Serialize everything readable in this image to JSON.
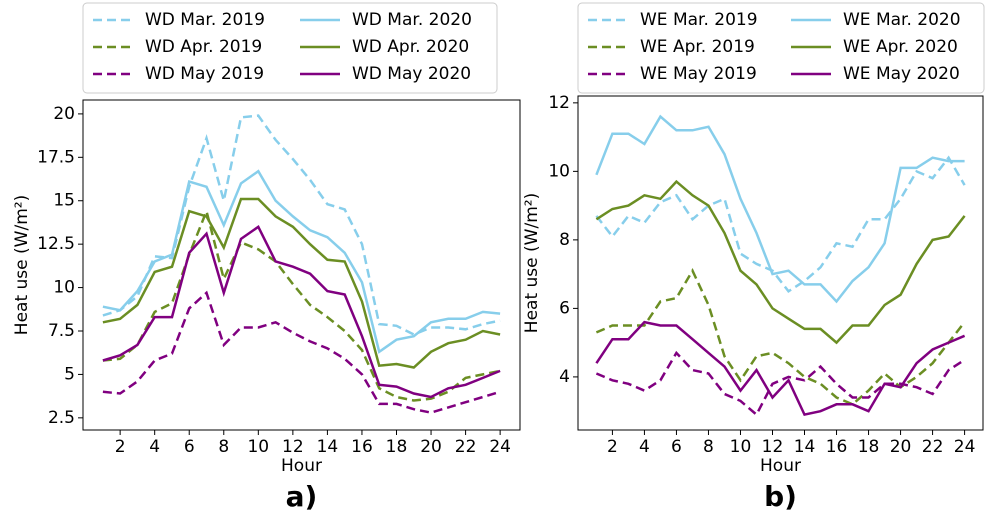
{
  "chart_data": [
    {
      "type": "line",
      "panel_label": "a)",
      "x_label": "Hour",
      "y_label": "Heat use (W/m²)",
      "x": [
        1,
        2,
        3,
        4,
        5,
        6,
        7,
        8,
        9,
        10,
        11,
        12,
        13,
        14,
        15,
        16,
        17,
        18,
        19,
        20,
        21,
        22,
        23,
        24
      ],
      "xlim": [
        -0.15,
        25.15
      ],
      "xticks": [
        2,
        4,
        6,
        8,
        10,
        12,
        14,
        16,
        18,
        20,
        22,
        24
      ],
      "ylim": [
        1.8,
        20.8
      ],
      "yticks": [
        2.5,
        5.0,
        7.5,
        10.0,
        12.5,
        15.0,
        17.5,
        20.0
      ],
      "legend": "top",
      "legend_columns": 2,
      "series": [
        {
          "name": "WD Mar. 2019",
          "color": "#87ceeb",
          "linestyle": "dashed",
          "values": [
            8.4,
            8.7,
            9.5,
            11.8,
            11.7,
            15.8,
            18.6,
            15.0,
            19.8,
            19.9,
            18.5,
            17.4,
            16.2,
            14.8,
            14.5,
            12.5,
            7.9,
            7.8,
            7.3,
            7.7,
            7.7,
            7.6,
            7.9,
            8.1
          ]
        },
        {
          "name": "WD Apr. 2019",
          "color": "#6b8e23",
          "linestyle": "dashed",
          "values": [
            5.8,
            5.9,
            6.7,
            8.6,
            9.1,
            11.9,
            14.4,
            10.5,
            12.6,
            12.2,
            11.5,
            10.2,
            9.0,
            8.3,
            7.5,
            6.4,
            4.2,
            3.7,
            3.5,
            3.6,
            4.0,
            4.8,
            5.0,
            5.2
          ]
        },
        {
          "name": "WD May 2019",
          "color": "#800080",
          "linestyle": "dashed",
          "values": [
            4.0,
            3.9,
            4.6,
            5.8,
            6.2,
            8.8,
            9.7,
            6.7,
            7.7,
            7.7,
            8.0,
            7.4,
            6.9,
            6.5,
            5.9,
            5.0,
            3.3,
            3.3,
            3.0,
            2.8,
            3.1,
            3.4,
            3.7,
            4.0
          ]
        },
        {
          "name": "WD Mar. 2020",
          "color": "#87ceeb",
          "linestyle": "solid",
          "values": [
            8.9,
            8.7,
            9.8,
            11.5,
            11.9,
            16.1,
            15.8,
            13.6,
            16.0,
            16.7,
            15.0,
            14.1,
            13.3,
            12.9,
            12.0,
            10.3,
            6.3,
            7.0,
            7.2,
            8.0,
            8.2,
            8.2,
            8.6,
            8.5
          ]
        },
        {
          "name": "WD Apr. 2020",
          "color": "#6b8e23",
          "linestyle": "solid",
          "values": [
            8.0,
            8.2,
            9.0,
            10.9,
            11.2,
            14.4,
            14.1,
            12.3,
            15.1,
            15.1,
            14.1,
            13.5,
            12.5,
            11.6,
            11.5,
            9.2,
            5.5,
            5.6,
            5.4,
            6.3,
            6.8,
            7.0,
            7.5,
            7.3
          ]
        },
        {
          "name": "WD May 2020",
          "color": "#800080",
          "linestyle": "solid",
          "values": [
            5.8,
            6.1,
            6.7,
            8.3,
            8.3,
            12.0,
            13.1,
            9.7,
            12.8,
            13.5,
            11.5,
            11.2,
            10.8,
            9.8,
            9.6,
            7.2,
            4.4,
            4.3,
            3.9,
            3.7,
            4.2,
            4.4,
            4.8,
            5.2
          ]
        }
      ]
    },
    {
      "type": "line",
      "panel_label": "b)",
      "x_label": "Hour",
      "y_label": "Heat use (W/m²)",
      "x": [
        1,
        2,
        3,
        4,
        5,
        6,
        7,
        8,
        9,
        10,
        11,
        12,
        13,
        14,
        15,
        16,
        17,
        18,
        19,
        20,
        21,
        22,
        23,
        24
      ],
      "xlim": [
        -0.15,
        25.15
      ],
      "xticks": [
        2,
        4,
        6,
        8,
        10,
        12,
        14,
        16,
        18,
        20,
        22,
        24
      ],
      "ylim": [
        2.45,
        12.2
      ],
      "yticks": [
        4,
        6,
        8,
        10,
        12
      ],
      "legend": "top",
      "legend_columns": 2,
      "series": [
        {
          "name": "WE Mar. 2019",
          "color": "#87ceeb",
          "linestyle": "dashed",
          "values": [
            8.7,
            8.1,
            8.7,
            8.5,
            9.1,
            9.3,
            8.6,
            9.0,
            9.2,
            7.6,
            7.3,
            7.1,
            6.5,
            6.8,
            7.2,
            7.9,
            7.8,
            8.6,
            8.6,
            9.2,
            10.0,
            9.8,
            10.4,
            9.6
          ]
        },
        {
          "name": "WE Apr. 2019",
          "color": "#6b8e23",
          "linestyle": "dashed",
          "values": [
            5.3,
            5.5,
            5.5,
            5.5,
            6.2,
            6.3,
            7.1,
            6.1,
            4.6,
            3.9,
            4.6,
            4.7,
            4.4,
            4.0,
            3.8,
            3.4,
            3.2,
            3.6,
            4.1,
            3.7,
            4.0,
            4.4,
            5.0,
            5.6
          ]
        },
        {
          "name": "WE May 2019",
          "color": "#800080",
          "linestyle": "dashed",
          "values": [
            4.1,
            3.9,
            3.8,
            3.6,
            3.9,
            4.7,
            4.2,
            4.1,
            3.5,
            3.3,
            2.9,
            3.8,
            4.0,
            3.9,
            4.3,
            3.8,
            3.4,
            3.4,
            3.8,
            3.8,
            3.7,
            3.5,
            4.2,
            4.5
          ]
        },
        {
          "name": "WE Mar. 2020",
          "color": "#87ceeb",
          "linestyle": "solid",
          "values": [
            9.9,
            11.1,
            11.1,
            10.8,
            11.6,
            11.2,
            11.2,
            11.3,
            10.5,
            9.2,
            8.2,
            7.0,
            7.1,
            6.7,
            6.7,
            6.2,
            6.8,
            7.2,
            7.9,
            10.1,
            10.1,
            10.4,
            10.3,
            10.3
          ]
        },
        {
          "name": "WE Apr. 2020",
          "color": "#6b8e23",
          "linestyle": "solid",
          "values": [
            8.6,
            8.9,
            9.0,
            9.3,
            9.2,
            9.7,
            9.3,
            9.0,
            8.2,
            7.1,
            6.7,
            6.0,
            5.7,
            5.4,
            5.4,
            5.0,
            5.5,
            5.5,
            6.1,
            6.4,
            7.3,
            8.0,
            8.1,
            8.7
          ]
        },
        {
          "name": "WE May 2020",
          "color": "#800080",
          "linestyle": "solid",
          "values": [
            4.4,
            5.1,
            5.1,
            5.6,
            5.5,
            5.5,
            5.1,
            4.7,
            4.3,
            3.6,
            4.2,
            3.4,
            3.9,
            2.9,
            3.0,
            3.2,
            3.2,
            3.0,
            3.8,
            3.7,
            4.4,
            4.8,
            5.0,
            5.2
          ]
        }
      ]
    }
  ]
}
